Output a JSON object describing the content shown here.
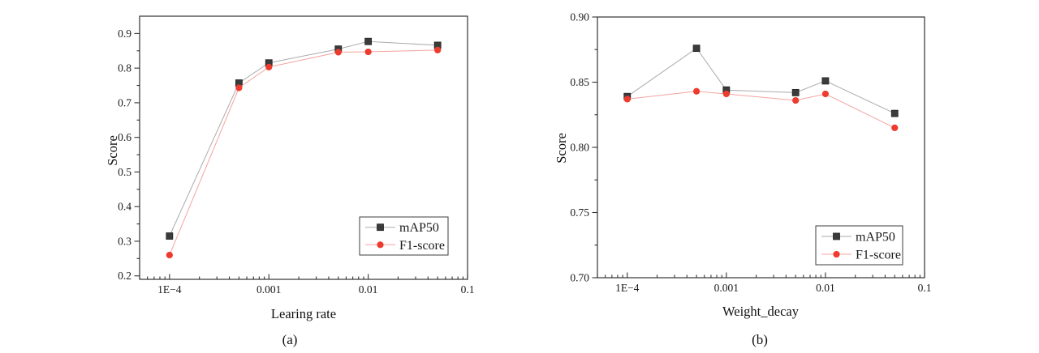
{
  "figure": {
    "background": "#ffffff",
    "panel_count": 2
  },
  "colors": {
    "axis": "#333333",
    "tick_text": "#1a1a1a",
    "legend_border": "#3c3c3c",
    "legend_fill": "#ffffff",
    "map50_marker": "#3b3b3b",
    "map50_marker_edge": "#222222",
    "map50_line": "#ababab",
    "f1_marker": "#ee3b2f",
    "f1_line": "#f4a49f"
  },
  "chart_data": [
    {
      "type": "line",
      "panel": "a",
      "caption": "(a)",
      "title": "",
      "xlabel": "Learing rate",
      "ylabel": "Score",
      "xscale": "log",
      "grid": false,
      "legend_position": "bottom-right",
      "xlim": [
        5e-05,
        0.1
      ],
      "ylim": [
        0.19,
        0.95
      ],
      "x": [
        0.0001,
        0.0005,
        0.001,
        0.005,
        0.01,
        0.05
      ],
      "xticks": [
        0.0001,
        0.001,
        0.01,
        0.1
      ],
      "xtick_labels": [
        "1E−4",
        "0.001",
        "0.01",
        "0.1"
      ],
      "yticks": [
        0.2,
        0.3,
        0.4,
        0.5,
        0.6,
        0.7,
        0.8,
        0.9
      ],
      "ytick_labels": [
        "0.2",
        "0.3",
        "0.4",
        "0.5",
        "0.6",
        "0.7",
        "0.8",
        "0.9"
      ],
      "yminor": [
        0.25,
        0.35,
        0.45,
        0.55,
        0.65,
        0.75,
        0.85
      ],
      "series": [
        {
          "name": "mAP50",
          "marker": "square",
          "values": [
            0.315,
            0.757,
            0.815,
            0.855,
            0.877,
            0.866
          ]
        },
        {
          "name": "F1-score",
          "marker": "circle",
          "values": [
            0.26,
            0.743,
            0.803,
            0.846,
            0.847,
            0.852
          ]
        }
      ]
    },
    {
      "type": "line",
      "panel": "b",
      "caption": "(b)",
      "title": "",
      "xlabel": "Weight_decay",
      "ylabel": "Score",
      "xscale": "log",
      "grid": false,
      "legend_position": "bottom-right",
      "xlim": [
        5e-05,
        0.1
      ],
      "ylim": [
        0.7,
        0.9
      ],
      "x": [
        0.0001,
        0.0005,
        0.001,
        0.005,
        0.01,
        0.05
      ],
      "xticks": [
        0.0001,
        0.001,
        0.01,
        0.1
      ],
      "xtick_labels": [
        "1E−4",
        "0.001",
        "0.01",
        "0.1"
      ],
      "yticks": [
        0.7,
        0.75,
        0.8,
        0.85,
        0.9
      ],
      "ytick_labels": [
        "0.70",
        "0.75",
        "0.80",
        "0.85",
        "0.90"
      ],
      "yminor": [
        0.725,
        0.775,
        0.825,
        0.875
      ],
      "series": [
        {
          "name": "mAP50",
          "marker": "square",
          "values": [
            0.839,
            0.876,
            0.844,
            0.842,
            0.851,
            0.826
          ]
        },
        {
          "name": "F1-score",
          "marker": "circle",
          "values": [
            0.837,
            0.843,
            0.841,
            0.836,
            0.841,
            0.815
          ]
        }
      ]
    }
  ]
}
